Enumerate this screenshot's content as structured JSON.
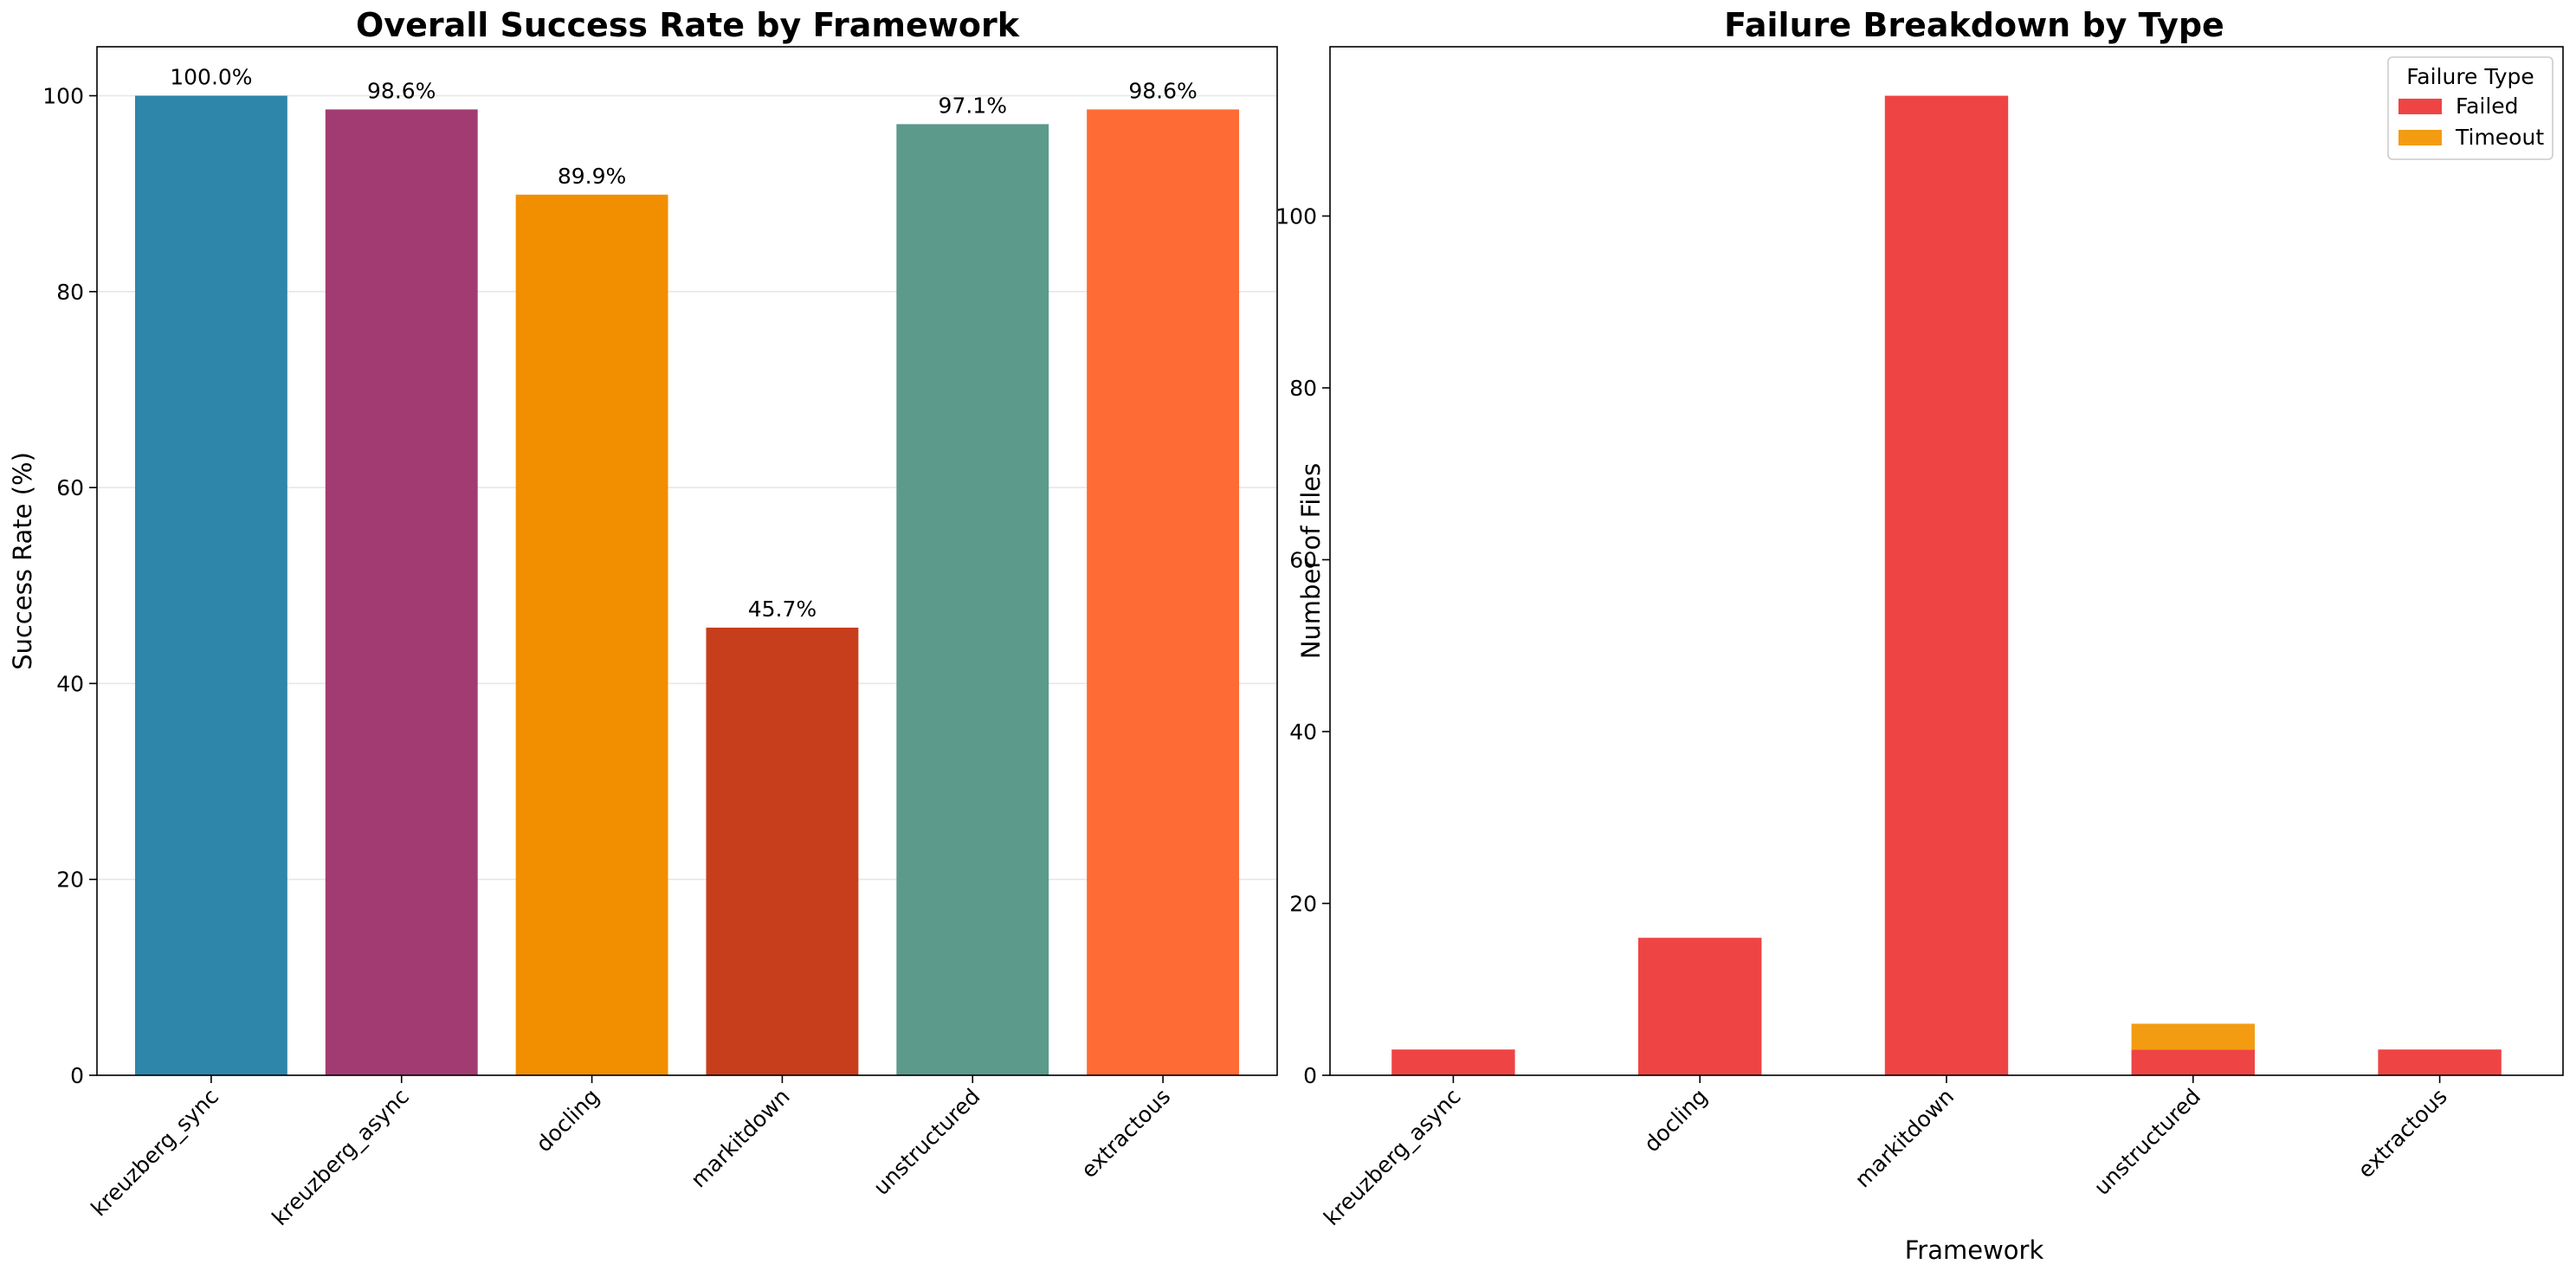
{
  "chart_data": [
    {
      "type": "bar",
      "title": "Overall Success Rate by Framework",
      "xlabel": "",
      "ylabel": "Success Rate (%)",
      "categories": [
        "kreuzberg_sync",
        "kreuzberg_async",
        "docling",
        "markitdown",
        "unstructured",
        "extractous"
      ],
      "values": [
        100.0,
        98.6,
        89.9,
        45.7,
        97.1,
        98.6
      ],
      "value_labels": [
        "100.0%",
        "98.6%",
        "89.9%",
        "45.7%",
        "97.1%",
        "98.6%"
      ],
      "colors": [
        "#2E86AB",
        "#A23B72",
        "#F18F01",
        "#C73E1D",
        "#5C9A8B",
        "#FF6B35"
      ],
      "ylim": [
        0,
        105
      ],
      "yticks": [
        0,
        20,
        40,
        60,
        80,
        100
      ],
      "grid": true
    },
    {
      "type": "bar",
      "stacked": true,
      "title": "Failure Breakdown by Type",
      "xlabel": "Framework",
      "ylabel": "Number of Files",
      "categories": [
        "kreuzberg_async",
        "docling",
        "markitdown",
        "unstructured",
        "extractous"
      ],
      "series": [
        {
          "name": "Failed",
          "color": "#EF4444",
          "values": [
            3,
            16,
            114,
            3,
            3
          ]
        },
        {
          "name": "Timeout",
          "color": "#F39C12",
          "values": [
            0,
            0,
            0,
            3,
            0
          ]
        }
      ],
      "legend_title": "Failure Type",
      "legend_position": "top-right",
      "ylim": [
        0,
        119.7
      ],
      "yticks": [
        0,
        20,
        40,
        60,
        80,
        100
      ],
      "grid": false
    }
  ]
}
